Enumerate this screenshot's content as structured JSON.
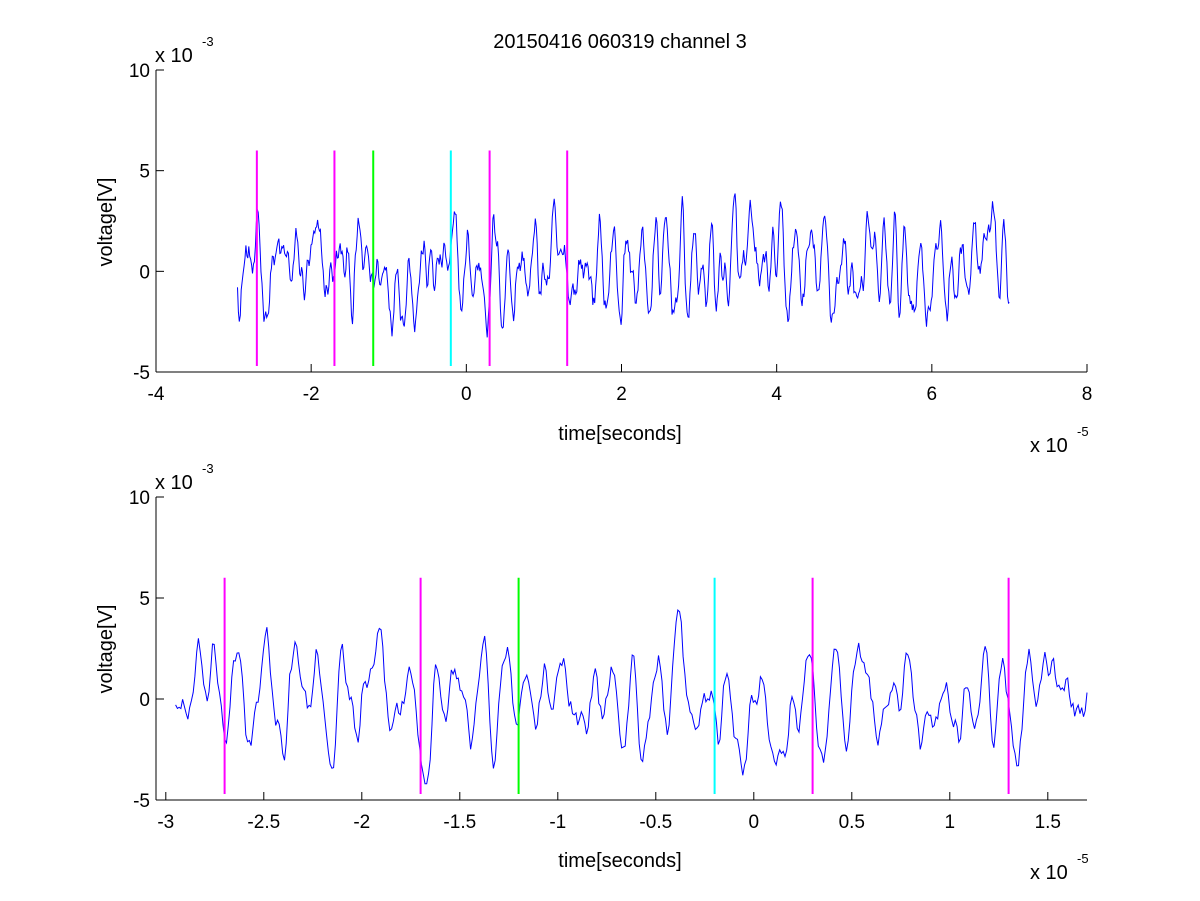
{
  "title": "20150416 060319 channel 3",
  "colors": {
    "background": "#ffffff",
    "axes": "#000000",
    "signal": "#0000ff",
    "magenta": "#ff00ff",
    "green": "#00ff00",
    "cyan": "#00ffff"
  },
  "chart_data": [
    {
      "type": "line",
      "title": "20150416 060319 channel 3",
      "xlabel": "time[seconds]",
      "ylabel": "voltage[V]",
      "x_exponent": "x 10",
      "x_exponent_power": "-5",
      "y_exponent": "x 10",
      "y_exponent_power": "-3",
      "xlim": [
        -4,
        8
      ],
      "ylim": [
        -5,
        10
      ],
      "xticks": [
        -4,
        -2,
        0,
        2,
        4,
        6,
        8
      ],
      "xtick_labels": [
        "-4",
        "-2",
        "0",
        "2",
        "4",
        "6",
        "8"
      ],
      "yticks": [
        -5,
        0,
        5,
        10
      ],
      "ytick_labels": [
        "-5",
        "0",
        "5",
        "10"
      ],
      "grid": false,
      "series": [
        {
          "x_start": -2.95,
          "x_end": 7.0,
          "samples": 820,
          "y_noise_amplitude": 1.1,
          "y_min": -4.2,
          "y_max": 5.4,
          "color": "#0000ff"
        }
      ],
      "markers": [
        {
          "x": -2.7,
          "y_from": -4.7,
          "y_to": 6.0,
          "color": "#ff00ff"
        },
        {
          "x": -1.7,
          "y_from": -4.7,
          "y_to": 6.0,
          "color": "#ff00ff"
        },
        {
          "x": -1.2,
          "y_from": -4.7,
          "y_to": 6.0,
          "color": "#00ff00"
        },
        {
          "x": -0.2,
          "y_from": -4.7,
          "y_to": 6.0,
          "color": "#00ffff"
        },
        {
          "x": 0.3,
          "y_from": -4.7,
          "y_to": 6.0,
          "color": "#ff00ff"
        },
        {
          "x": 1.3,
          "y_from": -4.7,
          "y_to": 6.0,
          "color": "#ff00ff"
        }
      ]
    },
    {
      "type": "line",
      "title": "",
      "xlabel": "time[seconds]",
      "ylabel": "voltage[V]",
      "x_exponent": "x 10",
      "x_exponent_power": "-5",
      "y_exponent": "x 10",
      "y_exponent_power": "-3",
      "xlim": [
        -3.05,
        1.7
      ],
      "ylim": [
        -5,
        10
      ],
      "xticks": [
        -3,
        -2.5,
        -2,
        -1.5,
        -1,
        -0.5,
        0,
        0.5,
        1,
        1.5
      ],
      "xtick_labels": [
        "-3",
        "-2.5",
        "-2",
        "-1.5",
        "-1",
        "-0.5",
        "0",
        "0.5",
        "1",
        "1.5"
      ],
      "yticks": [
        -5,
        0,
        5,
        10
      ],
      "ytick_labels": [
        "-5",
        "0",
        "5",
        "10"
      ],
      "grid": false,
      "series": [
        {
          "x_start": -2.95,
          "x_end": 1.7,
          "samples": 520,
          "y_noise_amplitude": 1.1,
          "y_min": -4.2,
          "y_max": 5.4,
          "color": "#0000ff"
        }
      ],
      "markers": [
        {
          "x": -2.7,
          "y_from": -4.7,
          "y_to": 6.0,
          "color": "#ff00ff"
        },
        {
          "x": -1.7,
          "y_from": -4.7,
          "y_to": 6.0,
          "color": "#ff00ff"
        },
        {
          "x": -1.2,
          "y_from": -4.7,
          "y_to": 6.0,
          "color": "#00ff00"
        },
        {
          "x": -0.2,
          "y_from": -4.7,
          "y_to": 6.0,
          "color": "#00ffff"
        },
        {
          "x": 0.3,
          "y_from": -4.7,
          "y_to": 6.0,
          "color": "#ff00ff"
        },
        {
          "x": 1.3,
          "y_from": -4.7,
          "y_to": 6.0,
          "color": "#ff00ff"
        }
      ]
    }
  ]
}
